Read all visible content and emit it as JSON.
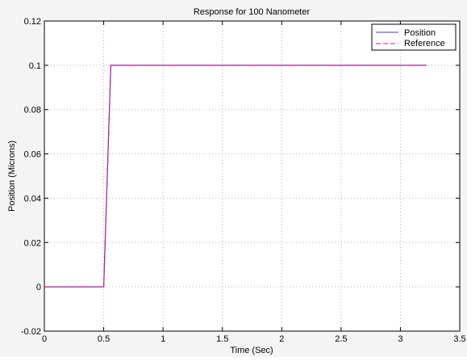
{
  "chart_data": {
    "type": "line",
    "title": "Response for 100 Nanometer",
    "xlabel": "Time (Sec)",
    "ylabel": "Position (Microns)",
    "xlim": [
      0,
      3.5
    ],
    "ylim": [
      -0.02,
      0.12
    ],
    "xticks": [
      0,
      0.5,
      1,
      1.5,
      2,
      2.5,
      3,
      3.5
    ],
    "xtick_labels": [
      "0",
      "0.5",
      "1",
      "1.5",
      "2",
      "2.5",
      "3",
      "3.5"
    ],
    "yticks": [
      -0.02,
      0,
      0.02,
      0.04,
      0.06,
      0.08,
      0.1,
      0.12
    ],
    "ytick_labels": [
      "-0.02",
      "0",
      "0.02",
      "0.04",
      "0.06",
      "0.08",
      "0.1",
      "0.12"
    ],
    "grid": true,
    "legend_position": "top-right",
    "series": [
      {
        "name": "Position",
        "color": "#3b3bd0",
        "style": "solid",
        "x": [
          0,
          0.5,
          0.56,
          3.22
        ],
        "y": [
          0,
          0,
          0.1,
          0.1
        ]
      },
      {
        "name": "Reference",
        "color": "#e0206e",
        "style": "dashed",
        "x": [
          0,
          0.5,
          0.56,
          3.22
        ],
        "y": [
          0,
          0,
          0.1,
          0.1
        ]
      }
    ]
  }
}
